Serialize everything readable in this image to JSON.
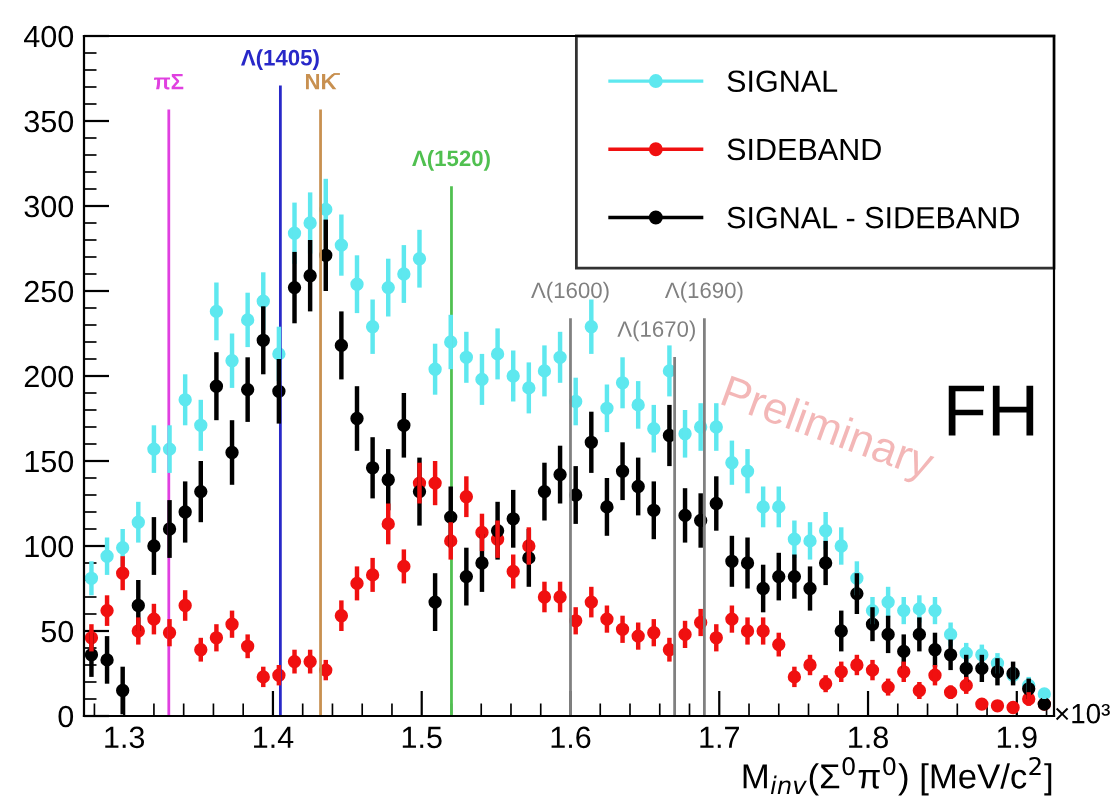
{
  "chart_data": {
    "type": "scatter",
    "xlabel": "M$_{inv}$(Σ$^{0}$π$^{0}$) [MeV/c$^{2}$]",
    "x": [
      1.278,
      1.2885,
      1.299,
      1.3095,
      1.32,
      1.3305,
      1.341,
      1.3515,
      1.362,
      1.3725,
      1.383,
      1.3935,
      1.404,
      1.4145,
      1.425,
      1.4355,
      1.446,
      1.4565,
      1.467,
      1.4775,
      1.488,
      1.4985,
      1.509,
      1.5195,
      1.53,
      1.5405,
      1.551,
      1.5615,
      1.572,
      1.5825,
      1.593,
      1.6035,
      1.614,
      1.6245,
      1.635,
      1.6455,
      1.656,
      1.6665,
      1.677,
      1.6875,
      1.698,
      1.7085,
      1.719,
      1.7295,
      1.74,
      1.7505,
      1.761,
      1.7715,
      1.782,
      1.7925,
      1.803,
      1.8135,
      1.824,
      1.8345,
      1.845,
      1.8555,
      1.866,
      1.8765,
      1.887,
      1.8975,
      1.908,
      1.9185
    ],
    "series": [
      {
        "name": "SIGNAL",
        "color": "#5ee8ef",
        "values": [
          81,
          94,
          99,
          114,
          157,
          157,
          186,
          171,
          238,
          209,
          233,
          244,
          213,
          284,
          290,
          298,
          277,
          254,
          229,
          252,
          260,
          269,
          204,
          220,
          211,
          198,
          213,
          200,
          193,
          203,
          211,
          185,
          229,
          181,
          196,
          183,
          169,
          203,
          166,
          170,
          170,
          149,
          144,
          123,
          123,
          104,
          103,
          109,
          100,
          81,
          62,
          67,
          62,
          63,
          62,
          48,
          37,
          36,
          31,
          24,
          18,
          13
        ],
        "errors": [
          10,
          11,
          11,
          12,
          14,
          14,
          15,
          15,
          17,
          16,
          16,
          17,
          16,
          18,
          18,
          18,
          18,
          17,
          16,
          17,
          17,
          17,
          15,
          16,
          15,
          15,
          15,
          15,
          15,
          15,
          15,
          14,
          16,
          14,
          15,
          14,
          14,
          15,
          14,
          14,
          14,
          13,
          13,
          12,
          12,
          11,
          11,
          11,
          11,
          10,
          8,
          9,
          8,
          8,
          8,
          7,
          6,
          6,
          6,
          5,
          5,
          3
        ]
      },
      {
        "name": "SIDEBAND",
        "color": "#f01010",
        "values": [
          46,
          62,
          84,
          50,
          57,
          49,
          65,
          39,
          46,
          54,
          41,
          23,
          24,
          32,
          32,
          27,
          59,
          78,
          83,
          113,
          88,
          137,
          137,
          103,
          129,
          108,
          104,
          85,
          100,
          70,
          70,
          56,
          67,
          57,
          51,
          47,
          49,
          39,
          48,
          55,
          46,
          57,
          50,
          50,
          42,
          23,
          30,
          19,
          26,
          30,
          27,
          17,
          26,
          15,
          24,
          14,
          18,
          7,
          6,
          5,
          10,
          7
        ],
        "errors": [
          8,
          9,
          10,
          8,
          9,
          8,
          9,
          7,
          8,
          8,
          7,
          6,
          6,
          7,
          7,
          6,
          9,
          10,
          10,
          12,
          10,
          12,
          13,
          11,
          12,
          11,
          11,
          10,
          11,
          9,
          9,
          8,
          9,
          8,
          8,
          8,
          8,
          7,
          8,
          8,
          8,
          8,
          8,
          8,
          7,
          6,
          6,
          5,
          6,
          6,
          6,
          5,
          6,
          5,
          6,
          4,
          5,
          3,
          3,
          3,
          4,
          null
        ]
      },
      {
        "name": "SIGNAL - SIDEBAND",
        "color": "#000000",
        "values": [
          36,
          33,
          15,
          65,
          100,
          110,
          120,
          132,
          194,
          155,
          192,
          221,
          191,
          252,
          259,
          271,
          218,
          175,
          146,
          139,
          171,
          132,
          67,
          117,
          82,
          90,
          109,
          116,
          93,
          132,
          142,
          130,
          161,
          123,
          144,
          135,
          121,
          165,
          118,
          115,
          125,
          91,
          90,
          75,
          82,
          82,
          75,
          90,
          50,
          72,
          54,
          48,
          38,
          48,
          39,
          36,
          28,
          28,
          26,
          25,
          16,
          7
        ],
        "errors": [
          13,
          14,
          14,
          15,
          17,
          17,
          18,
          18,
          20,
          19,
          19,
          20,
          19,
          21,
          21,
          21,
          20,
          19,
          18,
          18,
          19,
          20,
          17,
          18,
          17,
          17,
          17,
          17,
          17,
          17,
          17,
          17,
          18,
          17,
          17,
          17,
          17,
          18,
          16,
          16,
          16,
          15,
          15,
          14,
          14,
          13,
          13,
          13,
          12,
          12,
          10,
          11,
          10,
          10,
          10,
          9,
          8,
          8,
          8,
          7,
          6,
          2
        ]
      }
    ],
    "xlim": [
      1.273,
      1.925
    ],
    "xticks": [
      1.3,
      1.4,
      1.5,
      1.6,
      1.7,
      1.8,
      1.9
    ],
    "ylim": [
      0,
      400
    ],
    "yticks": [
      0,
      50,
      100,
      150,
      200,
      250,
      300,
      350,
      400
    ],
    "ref_lines": [
      {
        "axis": "x",
        "value": 1.33,
        "label": "πΣ",
        "color": "#e040e0"
      },
      {
        "axis": "x",
        "value": 1.405,
        "label": "Λ(1405)",
        "color": "#2828c8"
      },
      {
        "axis": "x",
        "value": 1.432,
        "label": "NK̄",
        "color": "#c89050"
      },
      {
        "axis": "x",
        "value": 1.52,
        "label": "Λ(1520)",
        "color": "#50c050"
      },
      {
        "axis": "x",
        "value": 1.6,
        "label": "Λ(1600)",
        "color": "#808080"
      },
      {
        "axis": "x",
        "value": 1.67,
        "label": "Λ(1670)",
        "color": "#808080"
      },
      {
        "axis": "x",
        "value": 1.69,
        "label": "Λ(1690)",
        "color": "#808080"
      }
    ],
    "annotations": [
      "Preliminary",
      "FH",
      "×10³"
    ],
    "marker": "circle",
    "legend": "top right",
    "grid": false
  }
}
